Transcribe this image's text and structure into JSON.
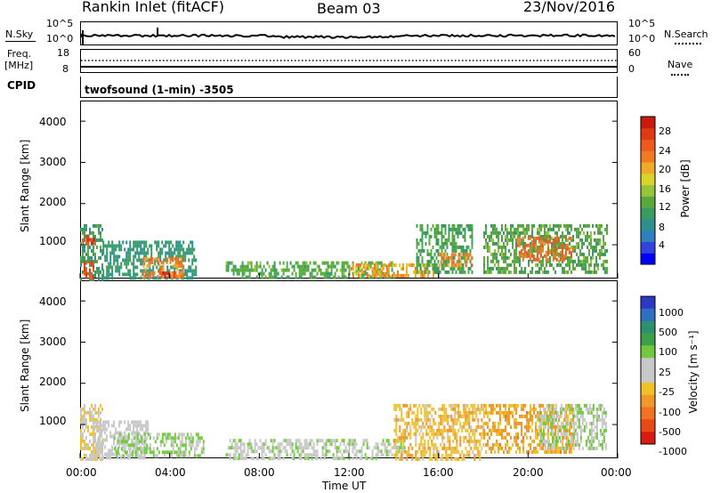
{
  "header": {
    "station": "Rankin Inlet (fitACF)",
    "beam": "Beam 03",
    "date": "23/Nov/2016"
  },
  "noise_panel": {
    "left_label": "N.Sky",
    "left_top": "10^5",
    "left_bottom": "10^0",
    "right_top": "10^5",
    "right_bottom": "10^0",
    "right_label": "N.Search"
  },
  "freq_panel": {
    "left_label_1": "Freq.",
    "left_label_2": "[MHz]",
    "left_top": "18",
    "left_bottom": "8",
    "right_top": "60",
    "right_bottom": "0",
    "right_label": "Nave"
  },
  "cpid": {
    "label": "CPID",
    "text": "twofsound (1-min) -3505"
  },
  "x_axis": {
    "ticks": [
      "00:00",
      "04:00",
      "08:00",
      "12:00",
      "16:00",
      "20:00",
      "00:00"
    ],
    "title": "Time UT"
  },
  "power_panel": {
    "ylabel": "Slant Range [km]",
    "yticks": [
      "1000",
      "2000",
      "3000",
      "4000"
    ],
    "colorbar_label": "Power [dB]",
    "colorbar_ticks": [
      "4",
      "8",
      "12",
      "16",
      "20",
      "24",
      "28"
    ],
    "colors": [
      "#0000ff",
      "#3344dd",
      "#2e7fbf",
      "#2f8f8f",
      "#3a9a60",
      "#5aa93e",
      "#96c43a",
      "#d9d52b",
      "#f0a928",
      "#f07c22",
      "#ee5a1c",
      "#e03a15",
      "#c81a0e"
    ]
  },
  "velocity_panel": {
    "ylabel": "Slant Range [km]",
    "yticks": [
      "1000",
      "2000",
      "3000",
      "4000"
    ],
    "colorbar_label": "Velocity [m s⁻¹]",
    "colorbar_ticks": [
      "1000",
      "500",
      "100",
      "25",
      "-25",
      "-100",
      "-500",
      "-1000"
    ],
    "colors": [
      "#2b39c4",
      "#2f6fc0",
      "#2f8f6e",
      "#3ea04a",
      "#72c83f",
      "#c8c8c8",
      "#c8c8c8",
      "#f0c228",
      "#f0982a",
      "#f07222",
      "#e84a18",
      "#d81c10"
    ]
  },
  "chart_data": [
    {
      "type": "heatmap",
      "title": "Power [dB]",
      "xlabel": "Time UT",
      "ylabel": "Slant Range [km]",
      "xlim": [
        0,
        24
      ],
      "ylim": [
        180,
        4500
      ],
      "clim": [
        0,
        30
      ],
      "regions": [
        {
          "t0": 0.0,
          "t1": 1.0,
          "r0": 200,
          "r1": 1500,
          "v": 10
        },
        {
          "t0": 0.0,
          "t1": 0.6,
          "r0": 200,
          "r1": 600,
          "v": 26
        },
        {
          "t0": 0.1,
          "t1": 0.6,
          "r0": 1000,
          "r1": 1250,
          "v": 27
        },
        {
          "t0": 1.0,
          "t1": 5.2,
          "r0": 200,
          "r1": 1100,
          "v": 9
        },
        {
          "t0": 2.8,
          "t1": 4.6,
          "r0": 200,
          "r1": 700,
          "v": 22
        },
        {
          "t0": 3.6,
          "t1": 4.2,
          "r0": 200,
          "r1": 350,
          "v": 28
        },
        {
          "t0": 6.5,
          "t1": 14.0,
          "r0": 200,
          "r1": 600,
          "v": 12
        },
        {
          "t0": 12.0,
          "t1": 16.0,
          "r0": 250,
          "r1": 550,
          "v": 20
        },
        {
          "t0": 15.0,
          "t1": 17.5,
          "r0": 300,
          "r1": 1500,
          "v": 11
        },
        {
          "t0": 16.0,
          "t1": 17.5,
          "r0": 500,
          "r1": 800,
          "v": 22
        },
        {
          "t0": 18.0,
          "t1": 23.5,
          "r0": 300,
          "r1": 1500,
          "v": 12
        },
        {
          "t0": 19.5,
          "t1": 22.0,
          "r0": 600,
          "r1": 1200,
          "v": 24
        }
      ]
    },
    {
      "type": "heatmap",
      "title": "Velocity [m s⁻¹]",
      "xlabel": "Time UT",
      "ylabel": "Slant Range [km]",
      "xlim": [
        0,
        24
      ],
      "ylim": [
        180,
        4500
      ],
      "clim": [
        -1000,
        1000
      ],
      "regions": [
        {
          "t0": 0.0,
          "t1": 1.0,
          "r0": 200,
          "r1": 1500,
          "v": -150
        },
        {
          "t0": 0.6,
          "t1": 3.0,
          "r0": 200,
          "r1": 1100,
          "v": 0
        },
        {
          "t0": 1.5,
          "t1": 5.5,
          "r0": 200,
          "r1": 800,
          "v": 200
        },
        {
          "t0": 6.5,
          "t1": 14.5,
          "r0": 200,
          "r1": 650,
          "v": 120
        },
        {
          "t0": 14.0,
          "t1": 18.0,
          "r0": 200,
          "r1": 1500,
          "v": -300
        },
        {
          "t0": 18.0,
          "t1": 22.0,
          "r0": 300,
          "r1": 1500,
          "v": -400
        },
        {
          "t0": 20.5,
          "t1": 23.5,
          "r0": 400,
          "r1": 1500,
          "v": 150
        }
      ]
    }
  ]
}
